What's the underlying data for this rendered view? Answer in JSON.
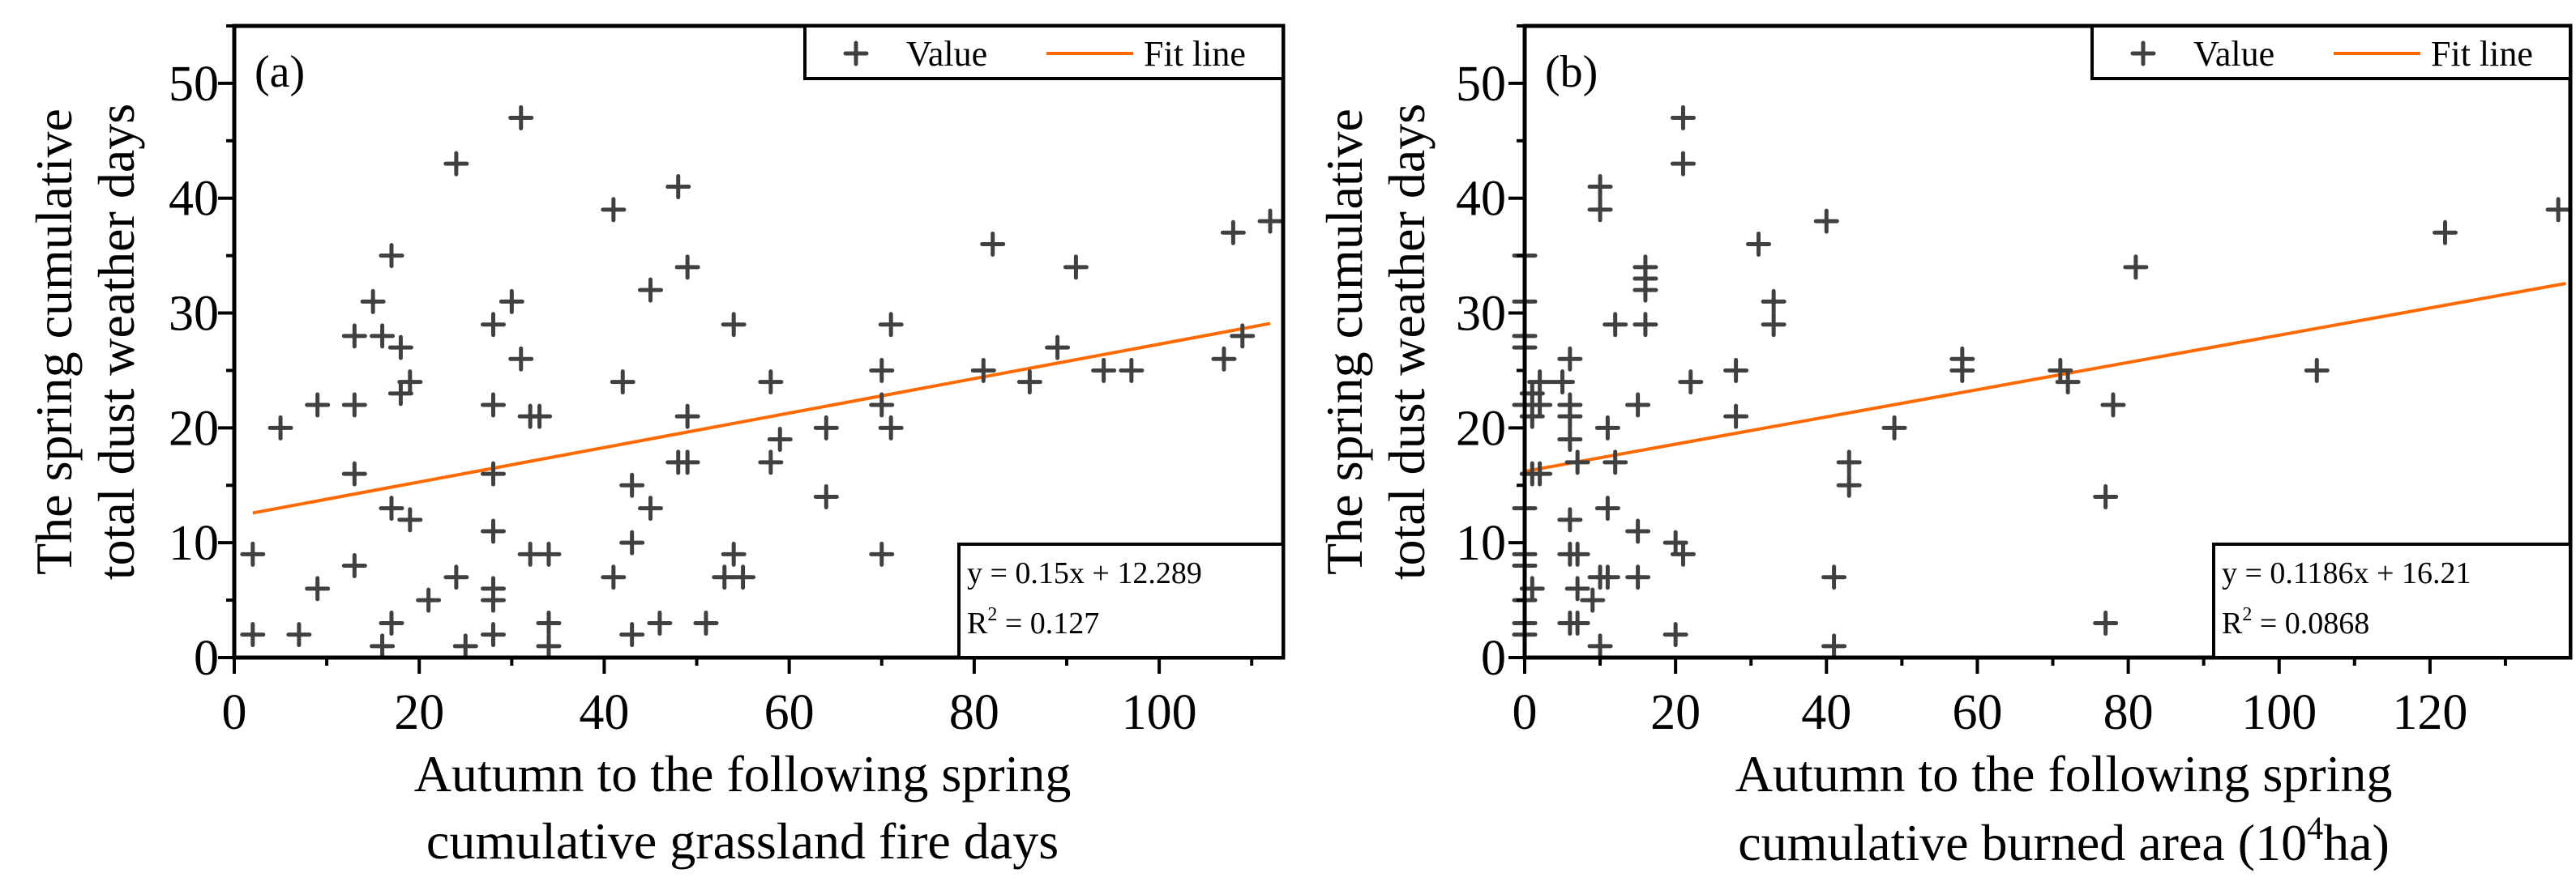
{
  "chart_data": [
    {
      "type": "scatter",
      "panel_label": "(a)",
      "xlabel_lines": [
        "Autumn to the following spring",
        "cumulative grassland fire days"
      ],
      "ylabel_lines": [
        "The spring cumulative",
        "total dust weather days"
      ],
      "xlim": [
        0,
        113.4
      ],
      "ylim": [
        0,
        55
      ],
      "xticks": [
        0,
        20,
        40,
        60,
        80,
        100
      ],
      "yticks": [
        0,
        10,
        20,
        30,
        40,
        50
      ],
      "legend": {
        "value_label": "Value",
        "fit_label": "Fit line",
        "position": "top-right"
      },
      "equation": "y = 0.15x + 12.289",
      "r2": {
        "prefix": "R",
        "sup": "2",
        "suffix": " = 0.127"
      },
      "fit": {
        "slope": 0.15,
        "intercept": 12.289,
        "x_range": [
          2,
          112
        ]
      },
      "points": [
        [
          2,
          9
        ],
        [
          2,
          2
        ],
        [
          5,
          20
        ],
        [
          7,
          2
        ],
        [
          9,
          22
        ],
        [
          9,
          6
        ],
        [
          13,
          28
        ],
        [
          13,
          22
        ],
        [
          13,
          16
        ],
        [
          13,
          8
        ],
        [
          15,
          31
        ],
        [
          16,
          28
        ],
        [
          16,
          1
        ],
        [
          17,
          35
        ],
        [
          17,
          13
        ],
        [
          17,
          3
        ],
        [
          18,
          27
        ],
        [
          18,
          23
        ],
        [
          19,
          24
        ],
        [
          19,
          12
        ],
        [
          21,
          5
        ],
        [
          24,
          43
        ],
        [
          24,
          7
        ],
        [
          25,
          1
        ],
        [
          28,
          29
        ],
        [
          28,
          22
        ],
        [
          28,
          16
        ],
        [
          28,
          11
        ],
        [
          28,
          6
        ],
        [
          28,
          5
        ],
        [
          28,
          2
        ],
        [
          30,
          31
        ],
        [
          31,
          47
        ],
        [
          31,
          26
        ],
        [
          32,
          21
        ],
        [
          32,
          9
        ],
        [
          33,
          21
        ],
        [
          34,
          9
        ],
        [
          34,
          3
        ],
        [
          34,
          1
        ],
        [
          41,
          39
        ],
        [
          41,
          7
        ],
        [
          42,
          24
        ],
        [
          43,
          15
        ],
        [
          43,
          10
        ],
        [
          43,
          2
        ],
        [
          45,
          13
        ],
        [
          45,
          32
        ],
        [
          46,
          3
        ],
        [
          48,
          41
        ],
        [
          48,
          17
        ],
        [
          49,
          34
        ],
        [
          49,
          21
        ],
        [
          49,
          17
        ],
        [
          51,
          3
        ],
        [
          53,
          7
        ],
        [
          54,
          29
        ],
        [
          54,
          9
        ],
        [
          55,
          7
        ],
        [
          58,
          24
        ],
        [
          58,
          17
        ],
        [
          59,
          19
        ],
        [
          64,
          20
        ],
        [
          64,
          14
        ],
        [
          70,
          25
        ],
        [
          70,
          22
        ],
        [
          70,
          9
        ],
        [
          71,
          29
        ],
        [
          71,
          20
        ],
        [
          81,
          25
        ],
        [
          82,
          36
        ],
        [
          86,
          24
        ],
        [
          89,
          27
        ],
        [
          91,
          34
        ],
        [
          94,
          25
        ],
        [
          97,
          25
        ],
        [
          107,
          26
        ],
        [
          108,
          37
        ],
        [
          109,
          28
        ],
        [
          112,
          38
        ]
      ]
    },
    {
      "type": "scatter",
      "panel_label": "(b)",
      "xlabel_lines": [
        "Autumn to the following spring"
      ],
      "xlabel_line2": {
        "pre": "cumulative burned area (10",
        "sup": "4",
        "post": "ha)"
      },
      "ylabel_lines": [
        "The spring cumulative",
        "total dust weather days"
      ],
      "xlim": [
        0,
        138.6
      ],
      "ylim": [
        0,
        55
      ],
      "xticks": [
        0,
        20,
        40,
        60,
        80,
        100,
        120
      ],
      "yticks": [
        0,
        10,
        20,
        30,
        40,
        50
      ],
      "legend": {
        "value_label": "Value",
        "fit_label": "Fit line",
        "position": "top-right"
      },
      "equation": "y = 0.1186x + 16.21",
      "r2": {
        "prefix": "R",
        "sup": "2",
        "suffix": " = 0.0868"
      },
      "fit": {
        "slope": 0.1186,
        "intercept": 16.21,
        "x_range": [
          0,
          138
        ]
      },
      "points": [
        [
          0,
          35
        ],
        [
          0,
          31
        ],
        [
          0,
          28
        ],
        [
          0,
          27
        ],
        [
          0,
          22
        ],
        [
          0,
          13
        ],
        [
          0,
          9
        ],
        [
          0,
          8
        ],
        [
          0,
          5
        ],
        [
          0,
          3
        ],
        [
          0,
          2
        ],
        [
          1,
          23
        ],
        [
          1,
          21
        ],
        [
          1,
          16
        ],
        [
          1,
          6
        ],
        [
          2,
          24
        ],
        [
          2,
          22
        ],
        [
          2,
          16
        ],
        [
          5,
          24
        ],
        [
          6,
          26
        ],
        [
          6,
          22
        ],
        [
          6,
          21
        ],
        [
          6,
          19
        ],
        [
          6,
          12
        ],
        [
          6,
          9
        ],
        [
          6,
          3
        ],
        [
          7,
          17
        ],
        [
          7,
          9
        ],
        [
          7,
          6
        ],
        [
          7,
          3
        ],
        [
          9,
          5
        ],
        [
          10,
          41
        ],
        [
          10,
          39
        ],
        [
          10,
          7
        ],
        [
          10,
          1
        ],
        [
          11,
          20
        ],
        [
          11,
          13
        ],
        [
          11,
          7
        ],
        [
          12,
          29
        ],
        [
          12,
          17
        ],
        [
          15,
          22
        ],
        [
          15,
          11
        ],
        [
          15,
          7
        ],
        [
          16,
          34
        ],
        [
          16,
          33
        ],
        [
          16,
          32
        ],
        [
          16,
          29
        ],
        [
          20,
          10
        ],
        [
          20,
          2
        ],
        [
          21,
          47
        ],
        [
          21,
          43
        ],
        [
          21,
          9
        ],
        [
          22,
          24
        ],
        [
          28,
          25
        ],
        [
          28,
          21
        ],
        [
          31,
          36
        ],
        [
          33,
          31
        ],
        [
          33,
          29
        ],
        [
          40,
          38
        ],
        [
          41,
          7
        ],
        [
          41,
          1
        ],
        [
          43,
          17
        ],
        [
          43,
          15
        ],
        [
          49,
          20
        ],
        [
          58,
          26
        ],
        [
          58,
          25
        ],
        [
          71,
          25
        ],
        [
          72,
          24
        ],
        [
          77,
          3
        ],
        [
          77,
          14
        ],
        [
          78,
          22
        ],
        [
          81,
          34
        ],
        [
          105,
          25
        ],
        [
          122,
          37
        ],
        [
          137,
          39
        ]
      ]
    }
  ],
  "colors": {
    "marker": "#404040",
    "fit": "#ff6a00"
  }
}
